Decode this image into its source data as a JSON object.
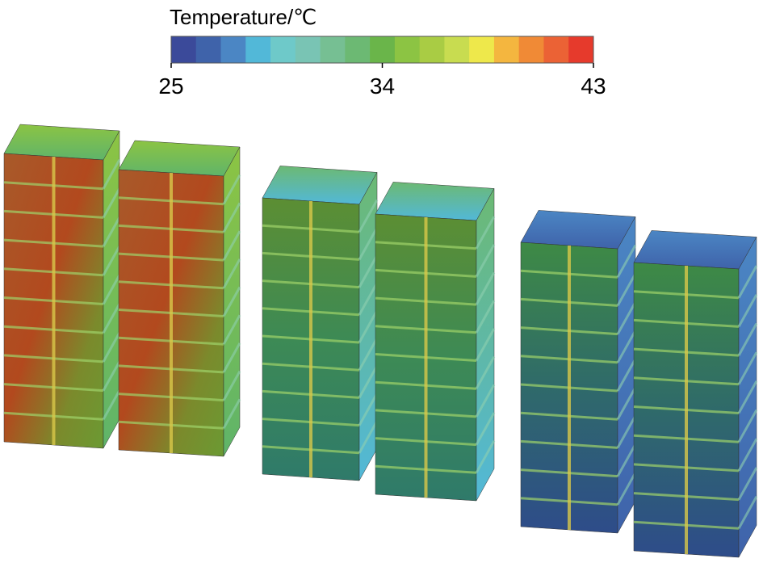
{
  "colorbar": {
    "title": "Temperature/℃",
    "range": [
      25,
      43
    ],
    "ticks": [
      25,
      34,
      43
    ],
    "colors": [
      "#3b4a9a",
      "#3f63aa",
      "#4b86c4",
      "#52b8d8",
      "#6ec9c9",
      "#79c4b4",
      "#76bf93",
      "#6cb973",
      "#6ab54a",
      "#8cc443",
      "#a9cc44",
      "#c8dc50",
      "#eee84b",
      "#f4b63f",
      "#f08a36",
      "#eb6235",
      "#e63a2c"
    ]
  }
}
